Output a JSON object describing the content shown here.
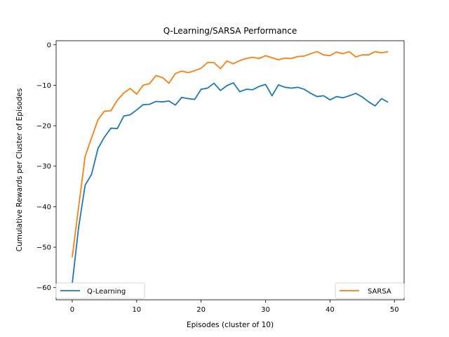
{
  "chart_data": {
    "type": "line",
    "title": "Q-Learning/SARSA Performance",
    "xlabel": "Episodes (cluster of 10)",
    "ylabel": "Cumulative Rewards per Cluster of Episodes",
    "xlim": [
      -2.5,
      51.5
    ],
    "ylim": [
      -63,
      1
    ],
    "x_ticks": [
      0,
      10,
      20,
      30,
      40,
      50
    ],
    "x_tick_labels": [
      "0",
      "10",
      "20",
      "30",
      "40",
      "50"
    ],
    "y_ticks": [
      0,
      -10,
      -20,
      -30,
      -40,
      -50,
      -60
    ],
    "y_tick_labels": [
      "0",
      "−10",
      "−20",
      "−30",
      "−40",
      "−50",
      "−60"
    ],
    "grid": false,
    "legend": "bottom (left and right)",
    "x": [
      0,
      1,
      2,
      3,
      4,
      5,
      6,
      7,
      8,
      9,
      10,
      11,
      12,
      13,
      14,
      15,
      16,
      17,
      18,
      19,
      20,
      21,
      22,
      23,
      24,
      25,
      26,
      27,
      28,
      29,
      30,
      31,
      32,
      33,
      34,
      35,
      36,
      37,
      38,
      39,
      40,
      41,
      42,
      43,
      44,
      45,
      46,
      47,
      48,
      49
    ],
    "series": [
      {
        "name": "Q-Learning",
        "color": "#1f77b4",
        "values": [
          -59,
          -45,
          -34.7,
          -32,
          -25.6,
          -22.8,
          -20.6,
          -20.7,
          -17.6,
          -17.3,
          -16.1,
          -14.8,
          -14.7,
          -14,
          -14.1,
          -13.9,
          -14.9,
          -13,
          -13.3,
          -13.5,
          -11,
          -10.7,
          -9.5,
          -11.3,
          -10.1,
          -9.4,
          -11.6,
          -11,
          -11.1,
          -10.3,
          -9.8,
          -12.6,
          -9.9,
          -10.5,
          -10.7,
          -10.5,
          -11,
          -12,
          -12.8,
          -12.6,
          -13.6,
          -12.8,
          -13.1,
          -12.6,
          -12,
          -12.9,
          -14.1,
          -15.1,
          -13.3,
          -14.2
        ]
      },
      {
        "name": "SARSA",
        "color": "#ff7f0e",
        "values": [
          -52.5,
          -40,
          -27.6,
          -23,
          -18.5,
          -16.4,
          -16.3,
          -13.7,
          -11.9,
          -10.8,
          -12.2,
          -10,
          -9.6,
          -7.6,
          -8.1,
          -9.5,
          -7.1,
          -6.5,
          -6.9,
          -6.4,
          -5.8,
          -4.4,
          -4.4,
          -5.9,
          -4,
          -4.7,
          -3.9,
          -3.4,
          -3.1,
          -3.4,
          -2.7,
          -3.2,
          -3.7,
          -3.3,
          -3.4,
          -2.9,
          -2.8,
          -2.2,
          -1.7,
          -2.5,
          -2.7,
          -1.8,
          -2.2,
          -1.7,
          -3,
          -2.5,
          -2.5,
          -1.7,
          -2,
          -1.7
        ]
      }
    ]
  }
}
